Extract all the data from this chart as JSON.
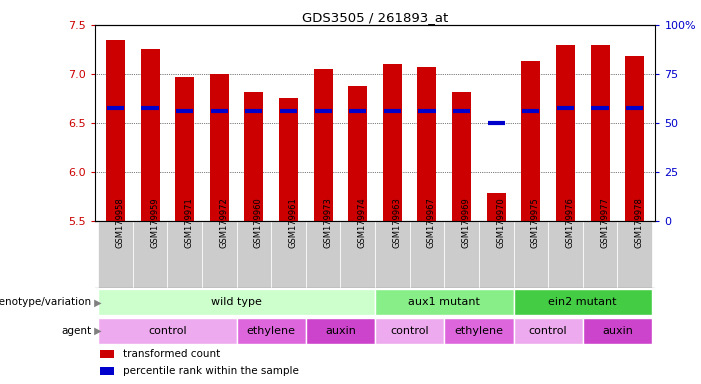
{
  "title": "GDS3505 / 261893_at",
  "samples": [
    "GSM179958",
    "GSM179959",
    "GSM179971",
    "GSM179972",
    "GSM179960",
    "GSM179961",
    "GSM179973",
    "GSM179974",
    "GSM179963",
    "GSM179967",
    "GSM179969",
    "GSM179970",
    "GSM179975",
    "GSM179976",
    "GSM179977",
    "GSM179978"
  ],
  "bar_values": [
    7.35,
    7.25,
    6.97,
    7.0,
    6.82,
    6.75,
    7.05,
    6.88,
    7.1,
    7.07,
    6.82,
    5.78,
    7.13,
    7.3,
    7.3,
    7.18
  ],
  "bar_bottom": 5.5,
  "percentile_values": [
    6.65,
    6.65,
    6.62,
    6.62,
    6.62,
    6.62,
    6.62,
    6.62,
    6.62,
    6.62,
    6.62,
    6.5,
    6.62,
    6.65,
    6.65,
    6.65
  ],
  "bar_color": "#cc0000",
  "percentile_color": "#0000cc",
  "ylim_left": [
    5.5,
    7.5
  ],
  "yticks_left": [
    5.5,
    6.0,
    6.5,
    7.0,
    7.5
  ],
  "ylim_right": [
    0,
    100
  ],
  "yticks_right": [
    0,
    25,
    50,
    75,
    100
  ],
  "yticklabels_right": [
    "0",
    "25",
    "50",
    "75",
    "100%"
  ],
  "genotype_groups": [
    {
      "label": "wild type",
      "start": 0,
      "end": 8,
      "color": "#ccffcc"
    },
    {
      "label": "aux1 mutant",
      "start": 8,
      "end": 12,
      "color": "#88ee88"
    },
    {
      "label": "ein2 mutant",
      "start": 12,
      "end": 16,
      "color": "#44cc44"
    }
  ],
  "agent_groups": [
    {
      "label": "control",
      "start": 0,
      "end": 4,
      "color": "#eeaaee"
    },
    {
      "label": "ethylene",
      "start": 4,
      "end": 6,
      "color": "#dd66dd"
    },
    {
      "label": "auxin",
      "start": 6,
      "end": 8,
      "color": "#cc44cc"
    },
    {
      "label": "control",
      "start": 8,
      "end": 10,
      "color": "#eeaaee"
    },
    {
      "label": "ethylene",
      "start": 10,
      "end": 12,
      "color": "#dd66dd"
    },
    {
      "label": "control",
      "start": 12,
      "end": 14,
      "color": "#eeaaee"
    },
    {
      "label": "auxin",
      "start": 14,
      "end": 16,
      "color": "#cc44cc"
    }
  ],
  "legend_items": [
    {
      "label": "transformed count",
      "color": "#cc0000"
    },
    {
      "label": "percentile rank within the sample",
      "color": "#0000cc"
    }
  ],
  "left_color": "#cc0000",
  "right_color": "#0000cc",
  "bar_width": 0.55,
  "xtick_bg": "#cccccc",
  "label_left_geno": "genotype/variation",
  "label_left_agent": "agent"
}
